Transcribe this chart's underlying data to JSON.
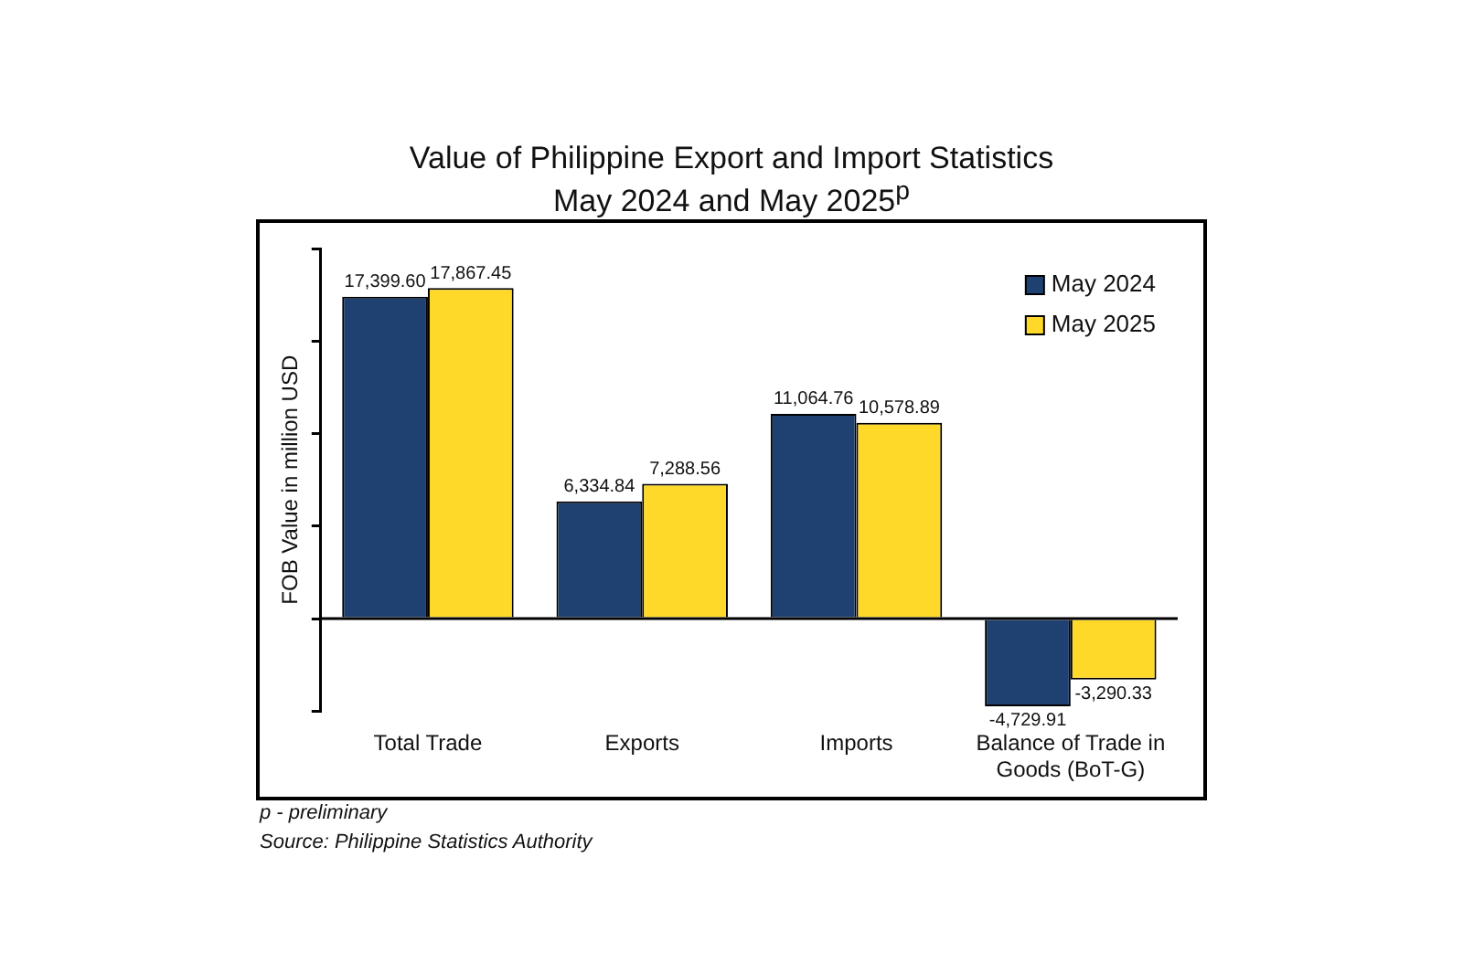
{
  "chart_data": {
    "type": "bar",
    "title": "Value of Philippine Export and Import Statistics",
    "subtitle": "May 2024 and May 2025$^{p}$",
    "ylabel": "FOB Value in million USD",
    "categories": [
      "Total Trade",
      "Exports",
      "Imports",
      "Balance of Trade in Goods (BoT-G)"
    ],
    "series": [
      {
        "name": "May 2024",
        "color": "#1f4172",
        "values": [
          17399.6,
          6334.84,
          11064.76,
          -4729.91
        ],
        "value_labels": [
          "17,399.60",
          "6,334.84",
          "11,064.76",
          "-4,729.91"
        ]
      },
      {
        "name": "May 2025",
        "color": "#ffd92a",
        "values": [
          17867.45,
          7288.56,
          10578.89,
          -3290.33
        ],
        "value_labels": [
          "17,867.45",
          "7,288.56",
          "10,578.89",
          "-3,290.33"
        ]
      }
    ],
    "tick_labels": "x",
    "grid": false,
    "legend": "top right",
    "annotations": [
      "p - preliminary",
      "Source: Philippine Statistics Authority"
    ]
  }
}
